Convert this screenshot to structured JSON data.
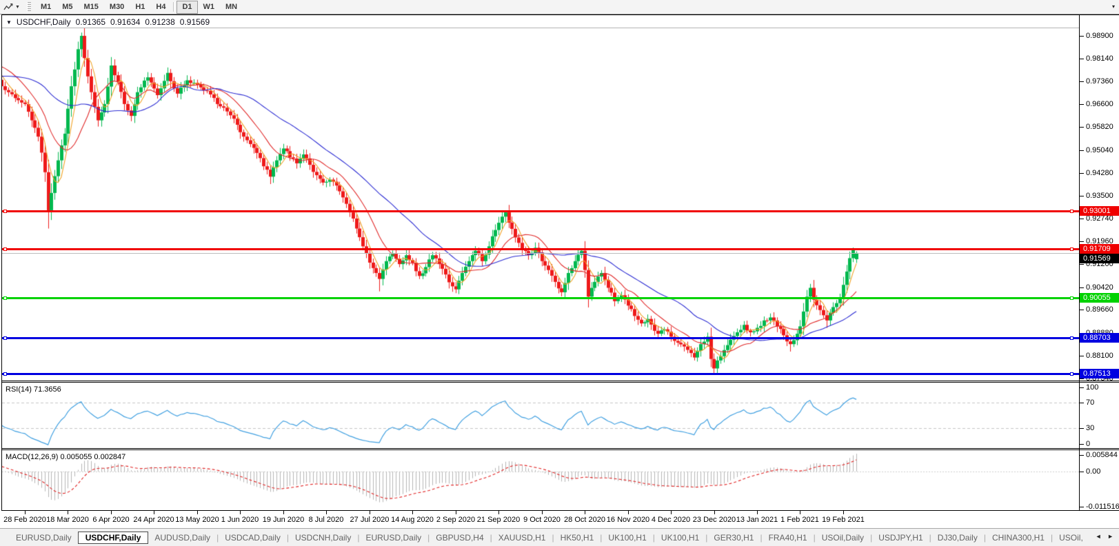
{
  "toolbar": {
    "timeframes": [
      "M1",
      "M5",
      "M15",
      "M30",
      "H1",
      "H4",
      "D1",
      "W1",
      "MN"
    ],
    "active": "D1",
    "tool_icon": "chart-line",
    "overflow_icon": "▾"
  },
  "window": {
    "caret": "▼",
    "symbol": "USDCHF,Daily",
    "open": "0.91365",
    "high": "0.91634",
    "low": "0.91238",
    "close": "0.91569"
  },
  "price_axis": {
    "labels": [
      "0.98900",
      "0.98140",
      "0.97360",
      "0.96600",
      "0.95820",
      "0.95040",
      "0.94280",
      "0.93500",
      "0.92740",
      "0.91960",
      "0.91200",
      "0.90420",
      "0.89660",
      "0.88880",
      "0.88100",
      "0.87340"
    ]
  },
  "date_axis": {
    "labels": [
      "28 Feb 2020",
      "18 Mar 2020",
      "6 Apr 2020",
      "24 Apr 2020",
      "13 May 2020",
      "1 Jun 2020",
      "19 Jun 2020",
      "8 Jul 2020",
      "27 Jul 2020",
      "14 Aug 2020",
      "2 Sep 2020",
      "21 Sep 2020",
      "9 Oct 2020",
      "28 Oct 2020",
      "16 Nov 2020",
      "4 Dec 2020",
      "23 Dec 2020",
      "13 Jan 2021",
      "1 Feb 2021",
      "19 Feb 2021"
    ]
  },
  "rsi_panel": {
    "label": "RSI(14) 71.3656",
    "period": 14,
    "current": "71.3656",
    "scale_labels": [
      "100",
      "70",
      "30",
      "0"
    ],
    "guide_levels": [
      70,
      30
    ],
    "color": "#3f9fe0"
  },
  "macd_panel": {
    "label": "MACD(12,26,9) 0.005055 0.002847",
    "params": [
      12,
      26,
      9
    ],
    "main_value": "0.005055",
    "signal_value": "0.002847",
    "scale_labels": [
      "0.005844",
      "0.00",
      "-0.011516"
    ],
    "hist_color": "#b5b5b5",
    "signal_color": "#e02020"
  },
  "levels": [
    {
      "label": "0.93001",
      "price": 0.93001,
      "color": "#f00000",
      "thickness": 3
    },
    {
      "label": "0.91709",
      "price": 0.91709,
      "color": "#f00000",
      "thickness": 3
    },
    {
      "label": "0.90055",
      "price": 0.90055,
      "color": "#00d200",
      "thickness": 3
    },
    {
      "label": "0.88703",
      "price": 0.88703,
      "color": "#0000e0",
      "thickness": 3
    },
    {
      "label": "0.87513",
      "price": 0.87513,
      "color": "#0000e0",
      "thickness": 3
    }
  ],
  "current_price": {
    "label": "0.91569",
    "value": 0.91569,
    "line_color": "#bbbbbb",
    "badge_color": "#000000"
  },
  "tabs": {
    "items": [
      "EURUSD,Daily",
      "USDCHF,Daily",
      "AUDUSD,Daily",
      "USDCAD,Daily",
      "USDCNH,Daily",
      "EURUSD,Daily",
      "GBPUSD,H4",
      "XAUUSD,H1",
      "HK50,H1",
      "UK100,H1",
      "UK100,H1",
      "GER30,H1",
      "FRA40,H1",
      "USOil,Daily",
      "USDJPY,H1",
      "DJ30,Daily",
      "CHINA300,H1",
      "USOil,"
    ],
    "active_index": 1,
    "scroll_left": "◄",
    "scroll_right": "►"
  },
  "chart_data": {
    "type": "candlestick",
    "symbol": "USDCHF",
    "timeframe": "Daily",
    "ylim": [
      0.8734,
      0.989
    ],
    "bars": 252,
    "visible_from_bar": -7,
    "x_label_stride_bars": 13,
    "candle_up_color": "#00b84e",
    "candle_down_color": "#ee1a1a",
    "moving_averages": [
      {
        "period": 5,
        "color": "#efa226"
      },
      {
        "period": 13,
        "color": "#e02828"
      },
      {
        "period": 34,
        "color": "#2a2ad2"
      }
    ],
    "close_waypoints": [
      [
        -40,
        0.97
      ],
      [
        -30,
        0.973
      ],
      [
        -20,
        0.9775
      ],
      [
        -13,
        0.9825
      ],
      [
        -9,
        0.976
      ],
      [
        -7,
        0.972
      ],
      [
        -5,
        0.97
      ],
      [
        -3,
        0.968
      ],
      [
        -1,
        0.9665
      ],
      [
        0,
        0.966
      ],
      [
        2,
        0.9605
      ],
      [
        4,
        0.955
      ],
      [
        6,
        0.943
      ],
      [
        7,
        0.93
      ],
      [
        8,
        0.936
      ],
      [
        10,
        0.947
      ],
      [
        12,
        0.956
      ],
      [
        14,
        0.972
      ],
      [
        16,
        0.9845
      ],
      [
        17,
        0.989
      ],
      [
        18,
        0.9815
      ],
      [
        20,
        0.97
      ],
      [
        22,
        0.9605
      ],
      [
        24,
        0.966
      ],
      [
        26,
        0.979
      ],
      [
        28,
        0.9735
      ],
      [
        30,
        0.966
      ],
      [
        32,
        0.962
      ],
      [
        34,
        0.97
      ],
      [
        37,
        0.975
      ],
      [
        40,
        0.969
      ],
      [
        43,
        0.9765
      ],
      [
        46,
        0.9695
      ],
      [
        49,
        0.974
      ],
      [
        52,
        0.9725
      ],
      [
        55,
        0.9705
      ],
      [
        58,
        0.966
      ],
      [
        61,
        0.9635
      ],
      [
        64,
        0.959
      ],
      [
        66,
        0.955
      ],
      [
        68,
        0.9525
      ],
      [
        70,
        0.9495
      ],
      [
        72,
        0.945
      ],
      [
        74,
        0.9415
      ],
      [
        76,
        0.947
      ],
      [
        78,
        0.951
      ],
      [
        80,
        0.948
      ],
      [
        82,
        0.946
      ],
      [
        84,
        0.949
      ],
      [
        86,
        0.9455
      ],
      [
        88,
        0.942
      ],
      [
        90,
        0.9395
      ],
      [
        92,
        0.9405
      ],
      [
        94,
        0.9385
      ],
      [
        96,
        0.9345
      ],
      [
        98,
        0.9295
      ],
      [
        100,
        0.924
      ],
      [
        102,
        0.918
      ],
      [
        104,
        0.9125
      ],
      [
        106,
        0.909
      ],
      [
        107,
        0.907
      ],
      [
        109,
        0.913
      ],
      [
        111,
        0.9155
      ],
      [
        113,
        0.912
      ],
      [
        115,
        0.915
      ],
      [
        117,
        0.9125
      ],
      [
        119,
        0.908
      ],
      [
        121,
        0.911
      ],
      [
        123,
        0.915
      ],
      [
        125,
        0.912
      ],
      [
        127,
        0.9085
      ],
      [
        129,
        0.9045
      ],
      [
        130,
        0.9035
      ],
      [
        132,
        0.909
      ],
      [
        134,
        0.913
      ],
      [
        136,
        0.9165
      ],
      [
        138,
        0.913
      ],
      [
        140,
        0.918
      ],
      [
        142,
        0.9235
      ],
      [
        144,
        0.928
      ],
      [
        145,
        0.9295
      ],
      [
        146,
        0.926
      ],
      [
        148,
        0.921
      ],
      [
        150,
        0.917
      ],
      [
        152,
        0.915
      ],
      [
        154,
        0.9175
      ],
      [
        156,
        0.913
      ],
      [
        158,
        0.91
      ],
      [
        160,
        0.906
      ],
      [
        162,
        0.9025
      ],
      [
        164,
        0.909
      ],
      [
        166,
        0.913
      ],
      [
        168,
        0.9165
      ],
      [
        169,
        0.91
      ],
      [
        170,
        0.901
      ],
      [
        172,
        0.906
      ],
      [
        174,
        0.909
      ],
      [
        176,
        0.904
      ],
      [
        178,
        0.8995
      ],
      [
        180,
        0.9015
      ],
      [
        182,
        0.898
      ],
      [
        184,
        0.8945
      ],
      [
        186,
        0.892
      ],
      [
        188,
        0.8935
      ],
      [
        190,
        0.8895
      ],
      [
        191,
        0.8885
      ],
      [
        193,
        0.89
      ],
      [
        195,
        0.8875
      ],
      [
        197,
        0.8855
      ],
      [
        199,
        0.8842
      ],
      [
        201,
        0.882
      ],
      [
        202,
        0.8805
      ],
      [
        204,
        0.885
      ],
      [
        206,
        0.8875
      ],
      [
        207,
        0.88
      ],
      [
        208,
        0.8768
      ],
      [
        209,
        0.8795
      ],
      [
        211,
        0.883
      ],
      [
        213,
        0.8865
      ],
      [
        215,
        0.889
      ],
      [
        217,
        0.8915
      ],
      [
        219,
        0.889
      ],
      [
        221,
        0.8905
      ],
      [
        223,
        0.893
      ],
      [
        225,
        0.894
      ],
      [
        227,
        0.891
      ],
      [
        229,
        0.888
      ],
      [
        231,
        0.885
      ],
      [
        233,
        0.8885
      ],
      [
        234,
        0.891
      ],
      [
        235,
        0.896
      ],
      [
        236,
        0.901
      ],
      [
        237,
        0.904
      ],
      [
        238,
        0.9
      ],
      [
        240,
        0.8965
      ],
      [
        242,
        0.893
      ],
      [
        244,
        0.8975
      ],
      [
        246,
        0.9005
      ],
      [
        247,
        0.905
      ],
      [
        248,
        0.9095
      ],
      [
        249,
        0.914
      ],
      [
        250,
        0.9168
      ],
      [
        251,
        0.91569
      ]
    ],
    "wick_overrides": {
      "7": {
        "low": 0.924
      },
      "17": {
        "high": 0.9901
      },
      "74": {
        "low": 0.939
      },
      "107": {
        "low": 0.9028
      },
      "130": {
        "low": 0.9022
      },
      "145": {
        "high": 0.93
      },
      "168": {
        "high": 0.9172
      },
      "202": {
        "low": 0.8795
      },
      "208": {
        "low": 0.8752
      },
      "231": {
        "low": 0.8825
      },
      "242": {
        "low": 0.8905
      },
      "250": {
        "high": 0.9176
      }
    },
    "last_bar_ohlc": [
      0.91365,
      0.91634,
      0.91238,
      0.91569
    ]
  }
}
